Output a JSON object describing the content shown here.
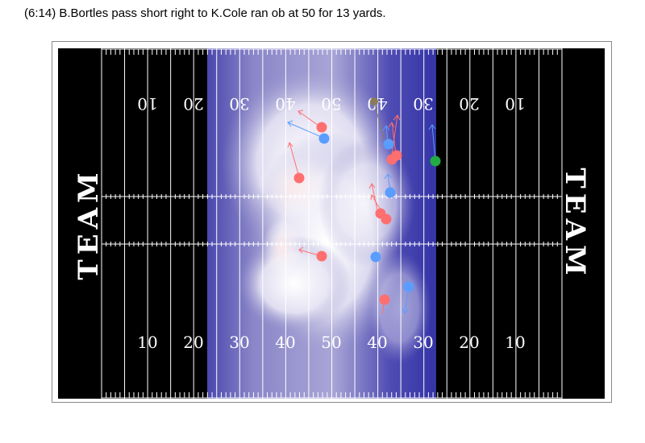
{
  "play": {
    "description": "(6:14) B.Bortles pass short right to K.Cole ran ob at 50 for 13 yards."
  },
  "field": {
    "endzone_label": "TEAM",
    "yard_numbers_bottom": [
      "10",
      "20",
      "30",
      "40",
      "50",
      "40",
      "30",
      "20",
      "10"
    ],
    "yard_numbers_top": [
      "10",
      "20",
      "30",
      "40",
      "50",
      "40",
      "30",
      "20",
      "10"
    ],
    "colors": {
      "turf": "#000000",
      "lines": "#ffffff",
      "heat_low": "#3b3ba8",
      "heat_high": "#ffffff",
      "heat_peak": "#f3d6d6"
    }
  },
  "players": [
    {
      "team": "offense",
      "color": "#ff6f6f"
    },
    {
      "team": "offense",
      "color": "#ff6f6f"
    },
    {
      "team": "offense",
      "color": "#ff6f6f"
    },
    {
      "team": "offense",
      "color": "#ff6f6f"
    },
    {
      "team": "offense",
      "color": "#ff6f6f"
    },
    {
      "team": "offense",
      "color": "#ff6f6f"
    },
    {
      "team": "offense",
      "color": "#ff6f6f"
    },
    {
      "team": "offense",
      "color": "#ff6f6f"
    },
    {
      "team": "defense",
      "color": "#5a9dff"
    },
    {
      "team": "defense",
      "color": "#5a9dff"
    },
    {
      "team": "defense",
      "color": "#5a9dff"
    },
    {
      "team": "defense",
      "color": "#5a9dff"
    },
    {
      "team": "defense",
      "color": "#5a9dff"
    },
    {
      "team": "ball-carrier",
      "color": "#22aa44"
    },
    {
      "team": "football",
      "color": "#8b7b5a"
    }
  ]
}
